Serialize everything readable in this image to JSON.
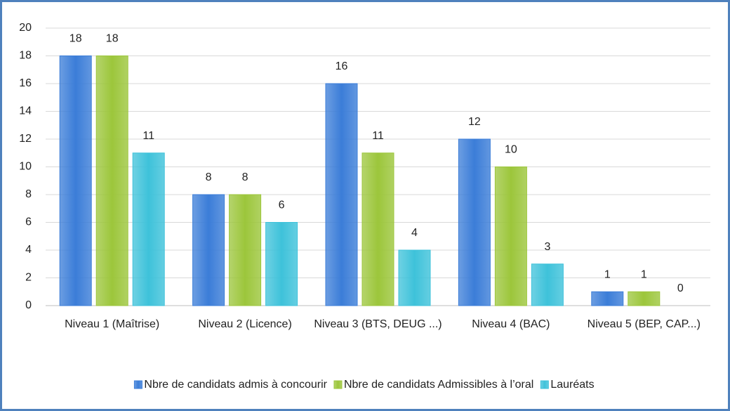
{
  "chart_data": {
    "type": "bar",
    "categories": [
      "Niveau 1 (Maîtrise)",
      "Niveau 2 (Licence)",
      "Niveau 3 (BTS, DEUG ...)",
      "Niveau 4 (BAC)",
      "Niveau 5 (BEP, CAP...)"
    ],
    "series": [
      {
        "name": "Nbre de candidats admis à concourir",
        "color": "#3b7dd8",
        "values": [
          18,
          8,
          16,
          12,
          1
        ]
      },
      {
        "name": "Nbre de candidats Admissibles à l’oral",
        "color": "#9cc63b",
        "values": [
          18,
          8,
          11,
          10,
          1
        ]
      },
      {
        "name": "Lauréats",
        "color": "#3ec2da",
        "values": [
          11,
          6,
          4,
          3,
          0
        ]
      }
    ],
    "ylim": [
      0,
      20
    ],
    "yticks": [
      0,
      2,
      4,
      6,
      8,
      10,
      12,
      14,
      16,
      18,
      20
    ],
    "grid": true,
    "legend": "bottom"
  }
}
